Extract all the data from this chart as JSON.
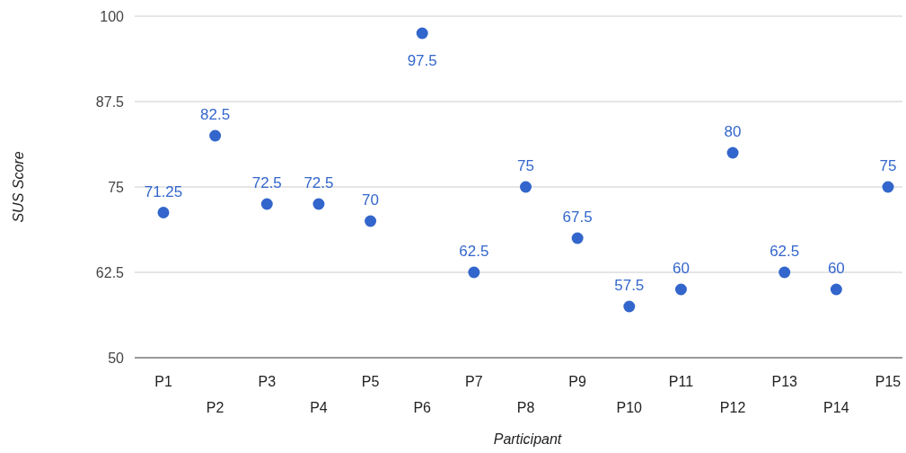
{
  "chart_data": {
    "type": "scatter",
    "xlabel": "Participant",
    "ylabel": "SUS Score",
    "categories": [
      "P1",
      "P2",
      "P3",
      "P4",
      "P5",
      "P6",
      "P7",
      "P8",
      "P9",
      "P10",
      "P11",
      "P12",
      "P13",
      "P14",
      "P15"
    ],
    "series": [
      {
        "color": "#3366cc",
        "values": [
          71.25,
          82.5,
          72.5,
          72.5,
          70,
          97.5,
          62.5,
          75,
          67.5,
          57.5,
          60,
          80,
          62.5,
          60,
          75
        ]
      }
    ],
    "ylim": [
      50,
      100
    ],
    "yticks": [
      50,
      62.5,
      75,
      87.5,
      100
    ],
    "grid": "y",
    "marker": "circle",
    "data_labels": true
  }
}
